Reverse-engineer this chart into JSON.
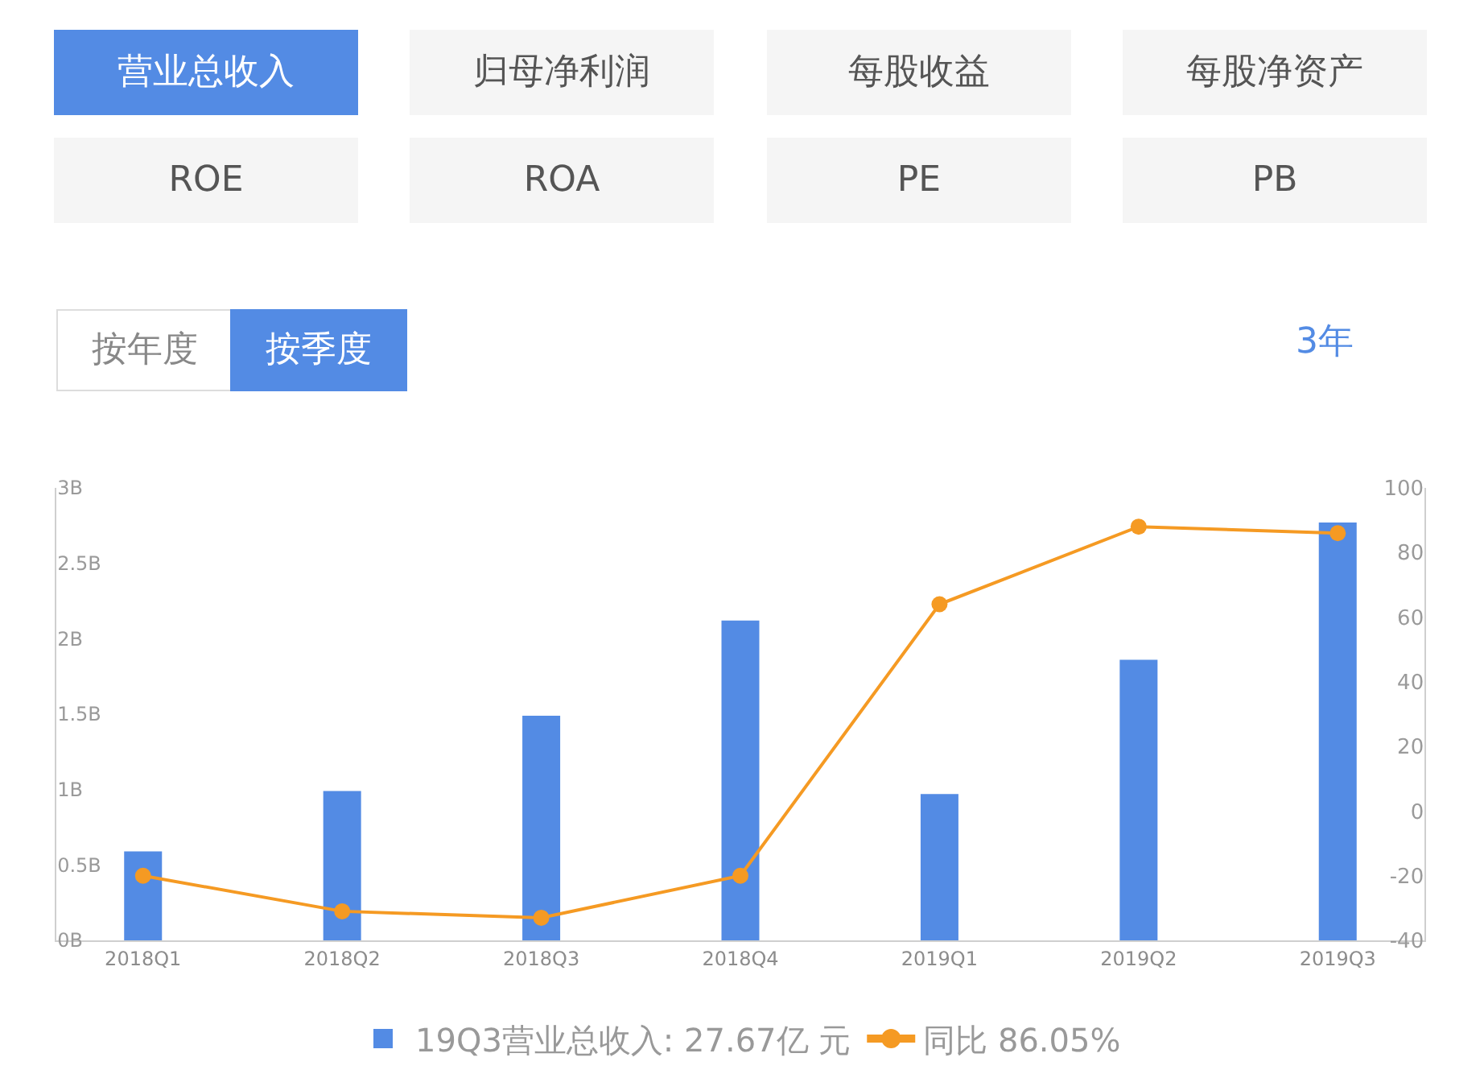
{
  "chart_data": {
    "type": "bar",
    "annotations": [
      "营业总收入",
      "归母净利润",
      "每股收益",
      "每股净资产",
      "ROE",
      "ROA",
      "PE",
      "PB",
      "按年度",
      "按季度",
      "3年"
    ],
    "categories": [
      "2018Q1",
      "2018Q2",
      "2018Q3",
      "2018Q4",
      "2019Q1",
      "2019Q2",
      "2019Q3"
    ],
    "series": [
      {
        "name": "19Q3营业总收入: 27.67亿 元",
        "color": "#538be4",
        "values": [
          0.59,
          0.99,
          1.49,
          2.12,
          0.97,
          1.86,
          2.77
        ]
      },
      {
        "name": "同比 86.05%",
        "type": "line",
        "axis": "y2",
        "color": "#f59a23",
        "values": [
          -20,
          -31,
          -33,
          -20,
          64,
          88,
          86
        ]
      }
    ],
    "ylim": [
      0,
      3
    ],
    "yticks": [
      {
        "value": 0,
        "label": "0B"
      },
      {
        "value": 0.5,
        "label": "0.5B"
      },
      {
        "value": 1,
        "label": "1B"
      },
      {
        "value": 1.5,
        "label": "1.5B"
      },
      {
        "value": 2,
        "label": "2B"
      },
      {
        "value": 2.5,
        "label": "2.5B"
      },
      {
        "value": 3,
        "label": "3B"
      }
    ],
    "y2lim": [
      -40,
      100
    ],
    "y2ticks": [
      -40,
      -20,
      0,
      20,
      40,
      60,
      80,
      100
    ],
    "legend": "bottom",
    "marker": "circle",
    "line_style": "solid"
  }
}
